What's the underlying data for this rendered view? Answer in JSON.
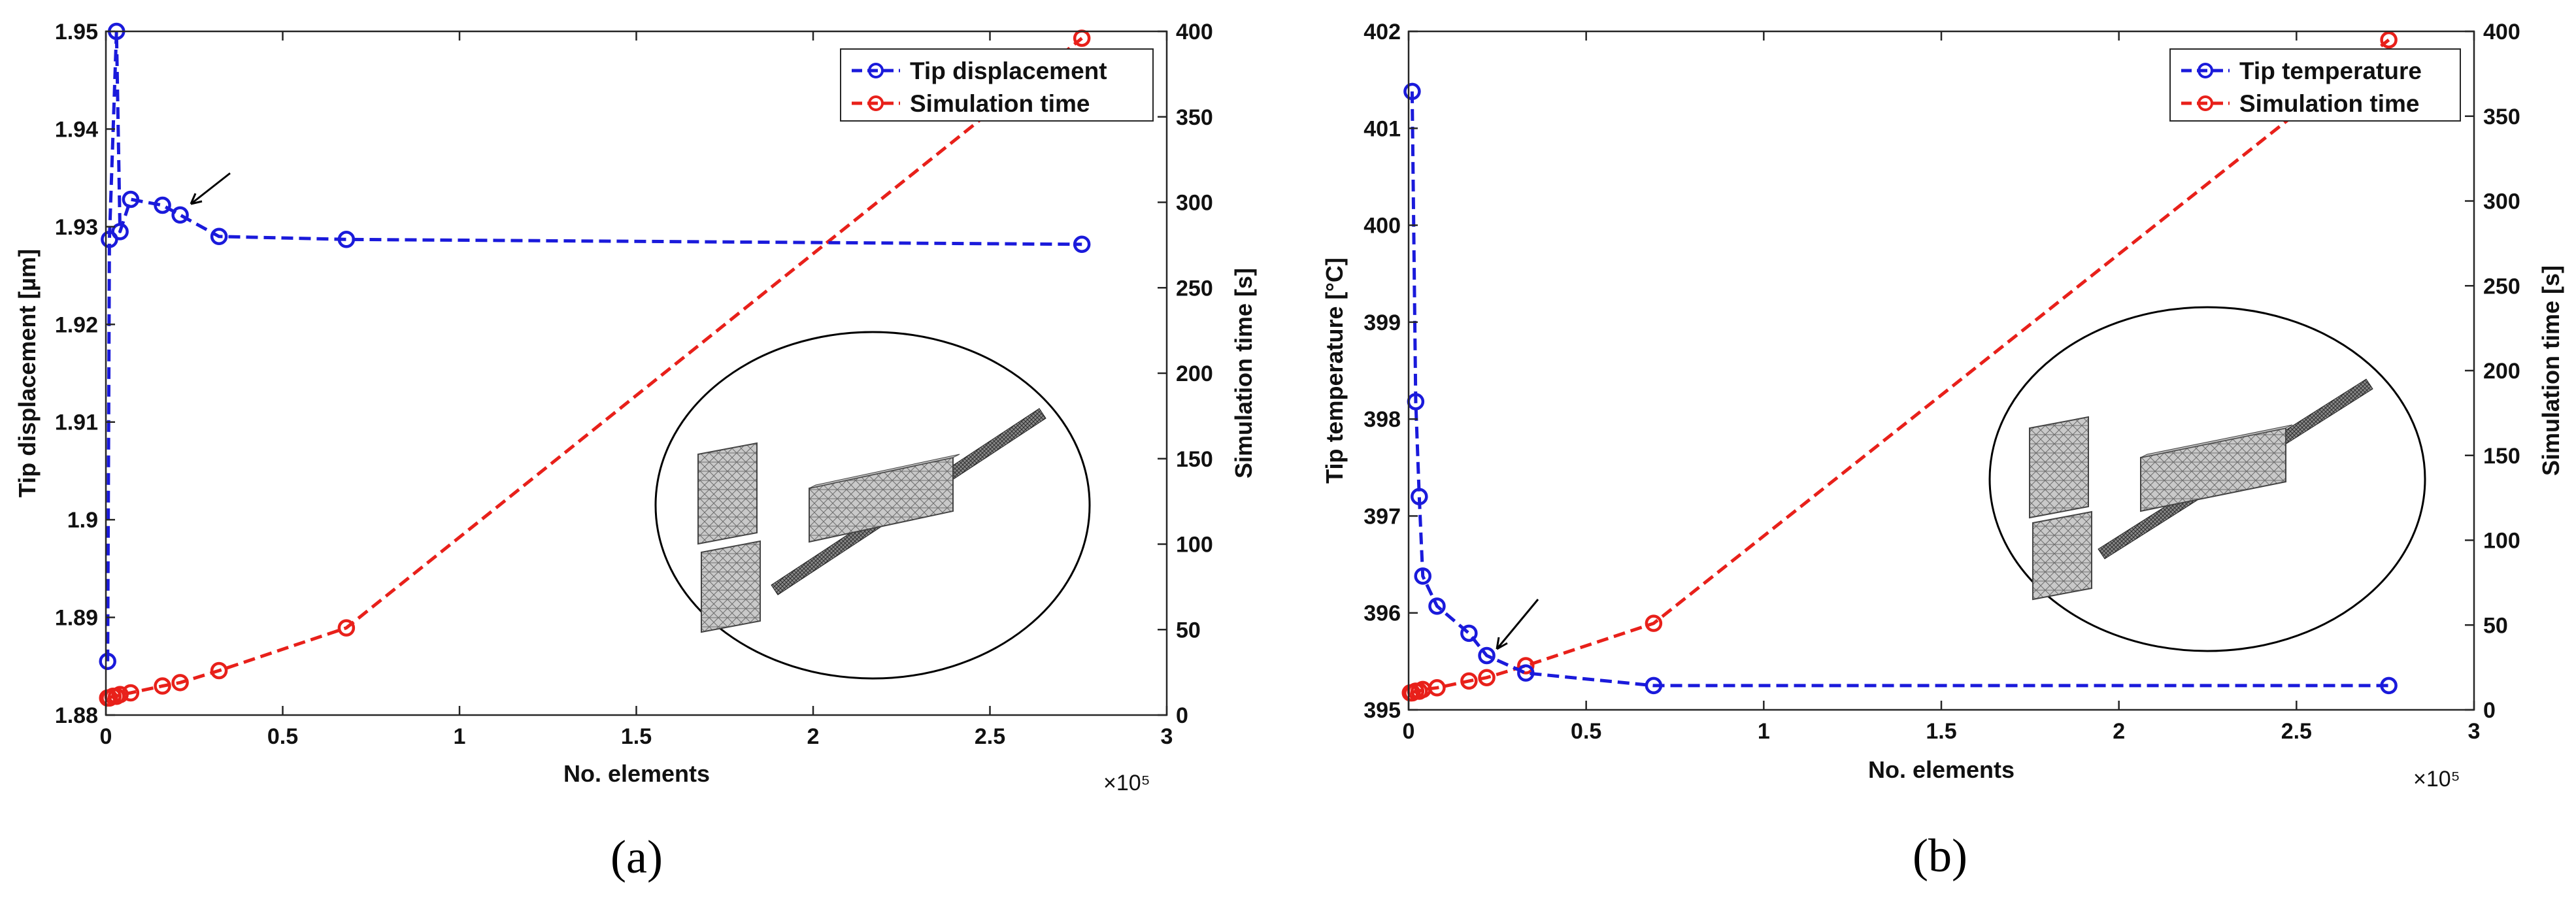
{
  "chart_data": [
    {
      "type": "line",
      "panel_label": "(a)",
      "title": "",
      "xlabel": "No. elements",
      "x_multiplier": "×10⁵",
      "xlim": [
        0,
        3
      ],
      "xticks": [
        "0",
        "0.5",
        "1",
        "1.5",
        "2",
        "2.5",
        "3"
      ],
      "ylabel_left": "Tip displacement [µm]",
      "ylim_left": [
        1.88,
        1.95
      ],
      "yticks_left": [
        "1.88",
        "1.89",
        "1.9",
        "1.91",
        "1.92",
        "1.93",
        "1.94",
        "1.95"
      ],
      "ylabel_right": "Simulation time [s]",
      "ylim_right": [
        0,
        400
      ],
      "yticks_right": [
        "0",
        "50",
        "100",
        "150",
        "200",
        "250",
        "300",
        "350",
        "400"
      ],
      "legend": [
        "Tip displacement",
        "Simulation time"
      ],
      "series": [
        {
          "name": "Tip displacement",
          "axis": "left",
          "color": "#1a1adb",
          "x": [
            0.005,
            0.01,
            0.03,
            0.04,
            0.07,
            0.16,
            0.21,
            0.32,
            0.68,
            2.76
          ],
          "values": [
            1.8855,
            1.9287,
            1.95,
            1.9295,
            1.9328,
            1.9322,
            1.9312,
            1.929,
            1.9287,
            1.9282
          ]
        },
        {
          "name": "Simulation time",
          "axis": "right",
          "color": "#e8201a",
          "x": [
            0.005,
            0.01,
            0.02,
            0.03,
            0.04,
            0.07,
            0.16,
            0.21,
            0.32,
            0.68,
            2.76
          ],
          "values": [
            10,
            10,
            11,
            11,
            12,
            13,
            17,
            19,
            26,
            51,
            396
          ]
        }
      ]
    },
    {
      "type": "line",
      "panel_label": "(b)",
      "title": "",
      "xlabel": "No. elements",
      "x_multiplier": "×10⁵",
      "xlim": [
        0,
        3
      ],
      "xticks": [
        "0",
        "0.5",
        "1",
        "1.5",
        "2",
        "2.5",
        "3"
      ],
      "ylabel_left": "Tip temperature [°C]",
      "ylim_left": [
        395,
        402
      ],
      "yticks_left": [
        "395",
        "396",
        "397",
        "398",
        "399",
        "400",
        "401",
        "402"
      ],
      "ylabel_right": "Simulation time [s]",
      "ylim_right": [
        0,
        400
      ],
      "yticks_right": [
        "0",
        "50",
        "100",
        "150",
        "200",
        "250",
        "300",
        "350",
        "400"
      ],
      "legend": [
        "Tip temperature",
        "Simulation time"
      ],
      "series": [
        {
          "name": "Tip temperature",
          "axis": "left",
          "color": "#1a1adb",
          "x": [
            0.01,
            0.02,
            0.03,
            0.04,
            0.08,
            0.17,
            0.22,
            0.33,
            0.69,
            2.76
          ],
          "values": [
            401.38,
            398.18,
            397.2,
            396.38,
            396.07,
            395.79,
            395.56,
            395.38,
            395.25,
            395.25
          ]
        },
        {
          "name": "Simulation time",
          "axis": "right",
          "color": "#e8201a",
          "x": [
            0.005,
            0.01,
            0.02,
            0.03,
            0.04,
            0.08,
            0.17,
            0.22,
            0.33,
            0.69,
            2.76
          ],
          "values": [
            10,
            10,
            11,
            11,
            12,
            13,
            17,
            19,
            26,
            51,
            395
          ]
        }
      ]
    }
  ]
}
